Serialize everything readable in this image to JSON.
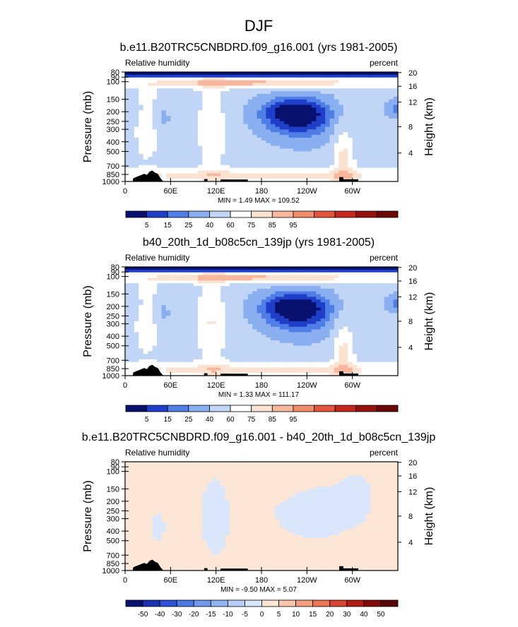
{
  "figure_title": "DJF",
  "chart_data": [
    {
      "type": "heatmap",
      "title": "b.e11.B20TRC5CNBDRD.f09_g16.001 (yrs 1981-2005)",
      "left_string": "Relative humidity",
      "right_string": "percent",
      "ylabel": "Pressure (mb)",
      "y2label": "Height (km)",
      "xlim": [
        0,
        360
      ],
      "x_ticks": [
        "0",
        "60E",
        "120E",
        "180",
        "120W",
        "60W"
      ],
      "y_ticks": [
        "80",
        "90",
        "100",
        "150",
        "200",
        "250",
        "300",
        "400",
        "500",
        "700",
        "850",
        "1000"
      ],
      "height_ticks": [
        "20",
        "16",
        "12",
        "8",
        "4"
      ],
      "stats": "MIN =   1.49  MAX = 109.52",
      "min": 1.49,
      "max": 109.52,
      "levels": [
        "5",
        "15",
        "25",
        "40",
        "60",
        "75",
        "85",
        "95"
      ],
      "colors": [
        "#08116e",
        "#1f3fc9",
        "#4f7ee6",
        "#8aaff0",
        "#c1d6f6",
        "#ffffff",
        "#fce2d0",
        "#f7b79c",
        "#f08c6c",
        "#e2553b",
        "#c4281c",
        "#98100c",
        "#6b0707"
      ]
    },
    {
      "type": "heatmap",
      "title": "b40_20th_1d_b08c5cn_139jp (yrs 1981-2005)",
      "left_string": "Relative humidity",
      "right_string": "percent",
      "ylabel": "Pressure (mb)",
      "y2label": "Height (km)",
      "xlim": [
        0,
        360
      ],
      "x_ticks": [
        "0",
        "60E",
        "120E",
        "180",
        "120W",
        "60W"
      ],
      "y_ticks": [
        "80",
        "90",
        "100",
        "150",
        "200",
        "250",
        "300",
        "400",
        "500",
        "700",
        "850",
        "1000"
      ],
      "height_ticks": [
        "20",
        "16",
        "12",
        "8",
        "4"
      ],
      "stats": "MIN =   1.33  MAX = 111.17",
      "min": 1.33,
      "max": 111.17,
      "levels": [
        "5",
        "15",
        "25",
        "40",
        "60",
        "75",
        "85",
        "95"
      ],
      "colors": [
        "#08116e",
        "#1f3fc9",
        "#4f7ee6",
        "#8aaff0",
        "#c1d6f6",
        "#ffffff",
        "#fce2d0",
        "#f7b79c",
        "#f08c6c",
        "#e2553b",
        "#c4281c",
        "#98100c",
        "#6b0707"
      ]
    },
    {
      "type": "heatmap",
      "title": "b.e11.B20TRC5CNBDRD.f09_g16.001 - b40_20th_1d_b08c5cn_139jp",
      "left_string": "Relative humidity",
      "right_string": "percent",
      "ylabel": "Pressure (mb)",
      "y2label": "Height (km)",
      "xlim": [
        0,
        360
      ],
      "x_ticks": [
        "0",
        "60E",
        "120E",
        "180",
        "120W",
        "60W"
      ],
      "y_ticks": [
        "80",
        "90",
        "100",
        "150",
        "200",
        "250",
        "300",
        "400",
        "500",
        "700",
        "850",
        "1000"
      ],
      "height_ticks": [
        "20",
        "16",
        "12",
        "8",
        "4"
      ],
      "stats": "MIN =  -9.50  MAX =   5.07",
      "min": -9.5,
      "max": 5.07,
      "levels": [
        "-50",
        "-40",
        "-30",
        "-20",
        "-15",
        "-10",
        "-5",
        "0",
        "5",
        "10",
        "15",
        "20",
        "30",
        "40",
        "50"
      ],
      "colors": [
        "#08116e",
        "#1a32b5",
        "#2d52d6",
        "#4a78e8",
        "#6e97ef",
        "#93b4f4",
        "#b8cdf8",
        "#d9e6fb",
        "#fde6d6",
        "#f9c6ac",
        "#f4a07e",
        "#ec7555",
        "#d9442e",
        "#b11d15",
        "#820a08",
        "#5a0505"
      ]
    }
  ]
}
